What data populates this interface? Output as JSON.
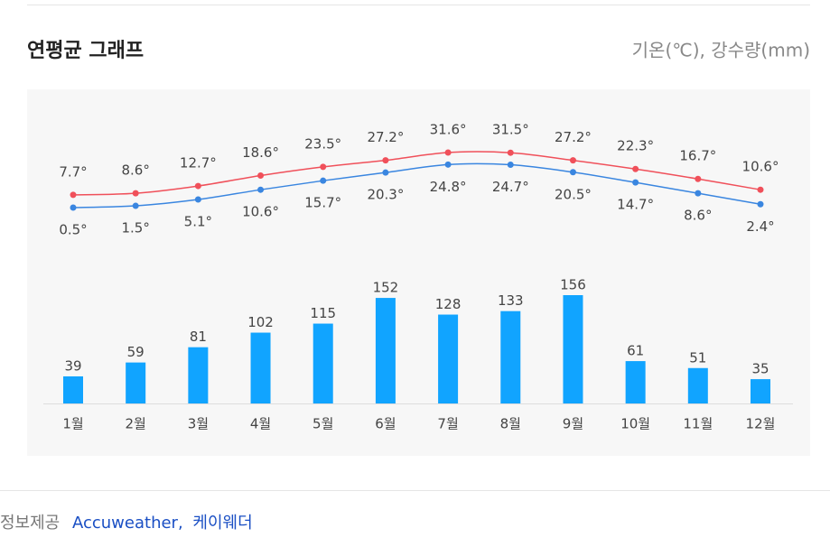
{
  "title": "연평균 그래프",
  "unit_note": "기온(℃), 강수량(mm)",
  "chart_data": {
    "type": "combo",
    "categories": [
      "1월",
      "2월",
      "3월",
      "4월",
      "5월",
      "6월",
      "7월",
      "8월",
      "9월",
      "10월",
      "11월",
      "12월"
    ],
    "series": [
      {
        "type": "line",
        "color": "#f0505a",
        "values": [
          7.7,
          8.6,
          12.7,
          18.6,
          23.5,
          27.2,
          31.6,
          31.5,
          27.2,
          22.3,
          16.7,
          10.6
        ],
        "value_labels": [
          "7.7°",
          "8.6°",
          "12.7°",
          "18.6°",
          "23.5°",
          "27.2°",
          "31.6°",
          "31.5°",
          "27.2°",
          "22.3°",
          "16.7°",
          "10.6°"
        ]
      },
      {
        "type": "line",
        "color": "#3a86e0",
        "values": [
          0.5,
          1.5,
          5.1,
          10.6,
          15.7,
          20.3,
          24.8,
          24.7,
          20.5,
          14.7,
          8.6,
          2.4
        ],
        "value_labels": [
          "0.5°",
          "1.5°",
          "5.1°",
          "10.6°",
          "15.7°",
          "20.3°",
          "24.8°",
          "24.7°",
          "20.5°",
          "14.7°",
          "8.6°",
          "2.4°"
        ]
      },
      {
        "type": "bar",
        "color": "#11a4ff",
        "values": [
          39,
          59,
          81,
          102,
          115,
          152,
          128,
          133,
          156,
          61,
          51,
          35
        ]
      }
    ]
  },
  "source": {
    "label": "정보제공",
    "providers": [
      "Accuweather",
      "케이웨더"
    ],
    "separator": ","
  }
}
